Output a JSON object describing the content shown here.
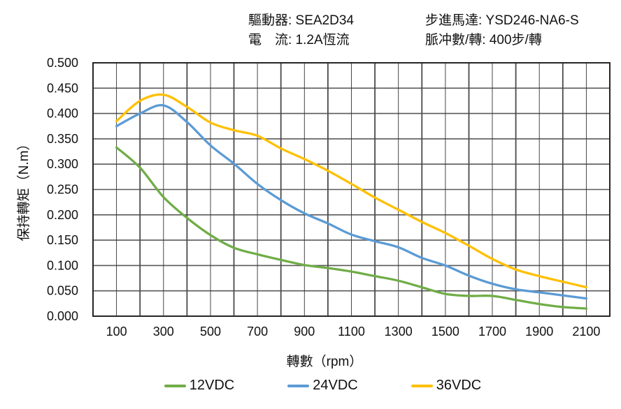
{
  "header": {
    "driver_label": "驅動器: SEA2D34",
    "current_label": "電　流: 1.2A恆流",
    "motor_label": "步進馬達: YSD246-NA6-S",
    "pulses_label": "脈冲數/轉: 400步/轉"
  },
  "chart_data": {
    "type": "line",
    "title": "",
    "xlabel": "轉數（rpm）",
    "ylabel": "保持轉矩（N.m）",
    "xlim": [
      0,
      2200
    ],
    "ylim": [
      0,
      0.5
    ],
    "x_grid_step": 100,
    "y_grid_step": 0.05,
    "x_tick_labels": [
      100,
      300,
      500,
      700,
      900,
      1100,
      1300,
      1500,
      1700,
      1900,
      2100
    ],
    "y_tick_labels": [
      "0.000",
      "0.050",
      "0.100",
      "0.150",
      "0.200",
      "0.250",
      "0.300",
      "0.350",
      "0.400",
      "0.450",
      "0.500"
    ],
    "grid": "on",
    "legend_position": "bottom",
    "x": [
      100,
      200,
      300,
      400,
      500,
      600,
      700,
      800,
      900,
      1000,
      1100,
      1200,
      1300,
      1400,
      1500,
      1600,
      1700,
      1800,
      1900,
      2000,
      2100
    ],
    "series": [
      {
        "name": "12VDC",
        "color": "#70AD47",
        "values": [
          0.333,
          0.293,
          0.235,
          0.194,
          0.16,
          0.135,
          0.122,
          0.111,
          0.101,
          0.095,
          0.088,
          0.079,
          0.07,
          0.057,
          0.044,
          0.04,
          0.04,
          0.032,
          0.024,
          0.018,
          0.015
        ]
      },
      {
        "name": "24VDC",
        "color": "#5B9BD5",
        "values": [
          0.375,
          0.4,
          0.416,
          0.383,
          0.337,
          0.301,
          0.261,
          0.229,
          0.203,
          0.183,
          0.161,
          0.148,
          0.136,
          0.115,
          0.1,
          0.08,
          0.064,
          0.053,
          0.047,
          0.041,
          0.035
        ]
      },
      {
        "name": "36VDC",
        "color": "#FFC000",
        "values": [
          0.385,
          0.425,
          0.437,
          0.413,
          0.382,
          0.367,
          0.356,
          0.331,
          0.31,
          0.287,
          0.261,
          0.234,
          0.21,
          0.186,
          0.164,
          0.139,
          0.113,
          0.092,
          0.079,
          0.068,
          0.057
        ]
      }
    ]
  },
  "legend": {
    "items": [
      {
        "label": "12VDC",
        "color": "#70AD47"
      },
      {
        "label": "24VDC",
        "color": "#5B9BD5"
      },
      {
        "label": "36VDC",
        "color": "#FFC000"
      }
    ]
  },
  "style_colors": {
    "grid_minor": "#333333",
    "grid_major": "#4a4a4a",
    "grid_horizontal": "#595959",
    "border": "#262626",
    "text": "#111111"
  }
}
